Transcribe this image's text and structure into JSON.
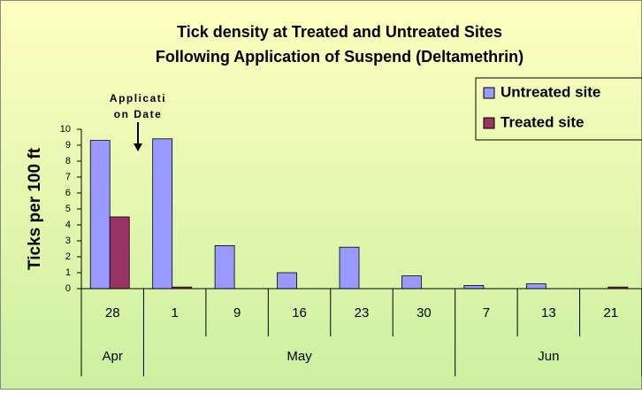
{
  "chart_data": {
    "type": "bar",
    "title_lines": [
      "Tick density at Treated and Untreated Sites",
      "Following Application of Suspend (Deltamethrin)"
    ],
    "y_label": "Ticks per 100 ft",
    "annotation_lines": [
      "Applicati",
      "on Date"
    ],
    "groups": [
      {
        "label": "Apr",
        "categories": [
          "28"
        ]
      },
      {
        "label": "May",
        "categories": [
          "1",
          "9",
          "16",
          "23",
          "30"
        ]
      },
      {
        "label": "Jun",
        "categories": [
          "7",
          "13",
          "21"
        ]
      }
    ],
    "series": [
      {
        "name": "Untreated site",
        "color": "#9999ff",
        "values": [
          9.3,
          9.4,
          2.7,
          1.0,
          2.6,
          0.8,
          0.2,
          0.3,
          0
        ]
      },
      {
        "name": "Treated site",
        "color": "#993366",
        "values": [
          4.5,
          0.1,
          0,
          0,
          0,
          0,
          0,
          0,
          0.1
        ]
      }
    ],
    "ylim": [
      0,
      10
    ],
    "yticks": [
      0,
      1,
      2,
      3,
      4,
      5,
      6,
      7,
      8,
      9,
      10
    ],
    "legend": "upper right"
  }
}
